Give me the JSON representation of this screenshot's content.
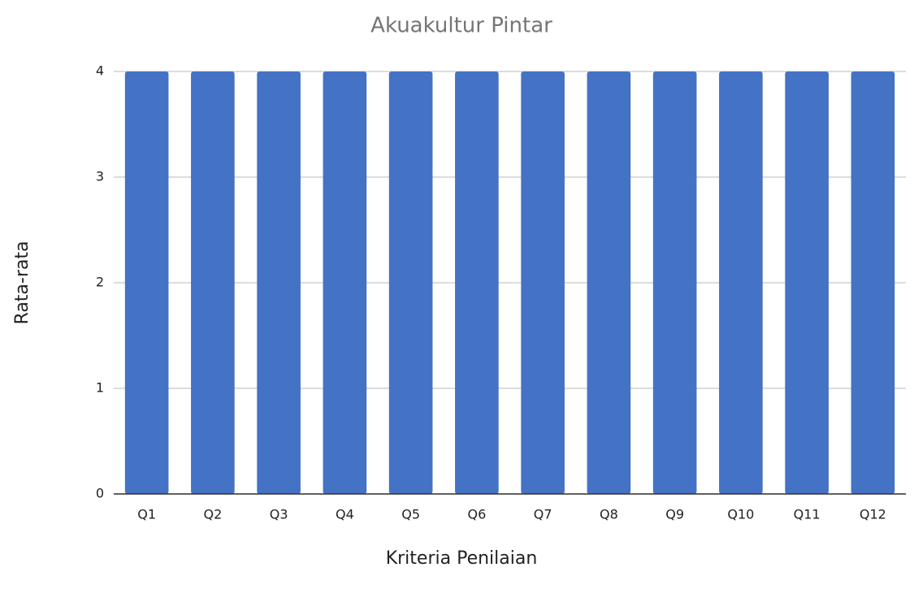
{
  "chart_data": {
    "type": "bar",
    "title": "Akuakultur Pintar",
    "x_label": "Kriteria Penilaian",
    "y_label": "Rata-rata",
    "categories": [
      "Q1",
      "Q2",
      "Q3",
      "Q4",
      "Q5",
      "Q6",
      "Q7",
      "Q8",
      "Q9",
      "Q10",
      "Q11",
      "Q12"
    ],
    "values": [
      4,
      4,
      4,
      4,
      4,
      4,
      4,
      4,
      4,
      4,
      4,
      4
    ],
    "color": "#4472c4",
    "ylim": [
      0,
      4
    ],
    "yticks": [
      0,
      1,
      2,
      3,
      4
    ],
    "grid": true
  }
}
